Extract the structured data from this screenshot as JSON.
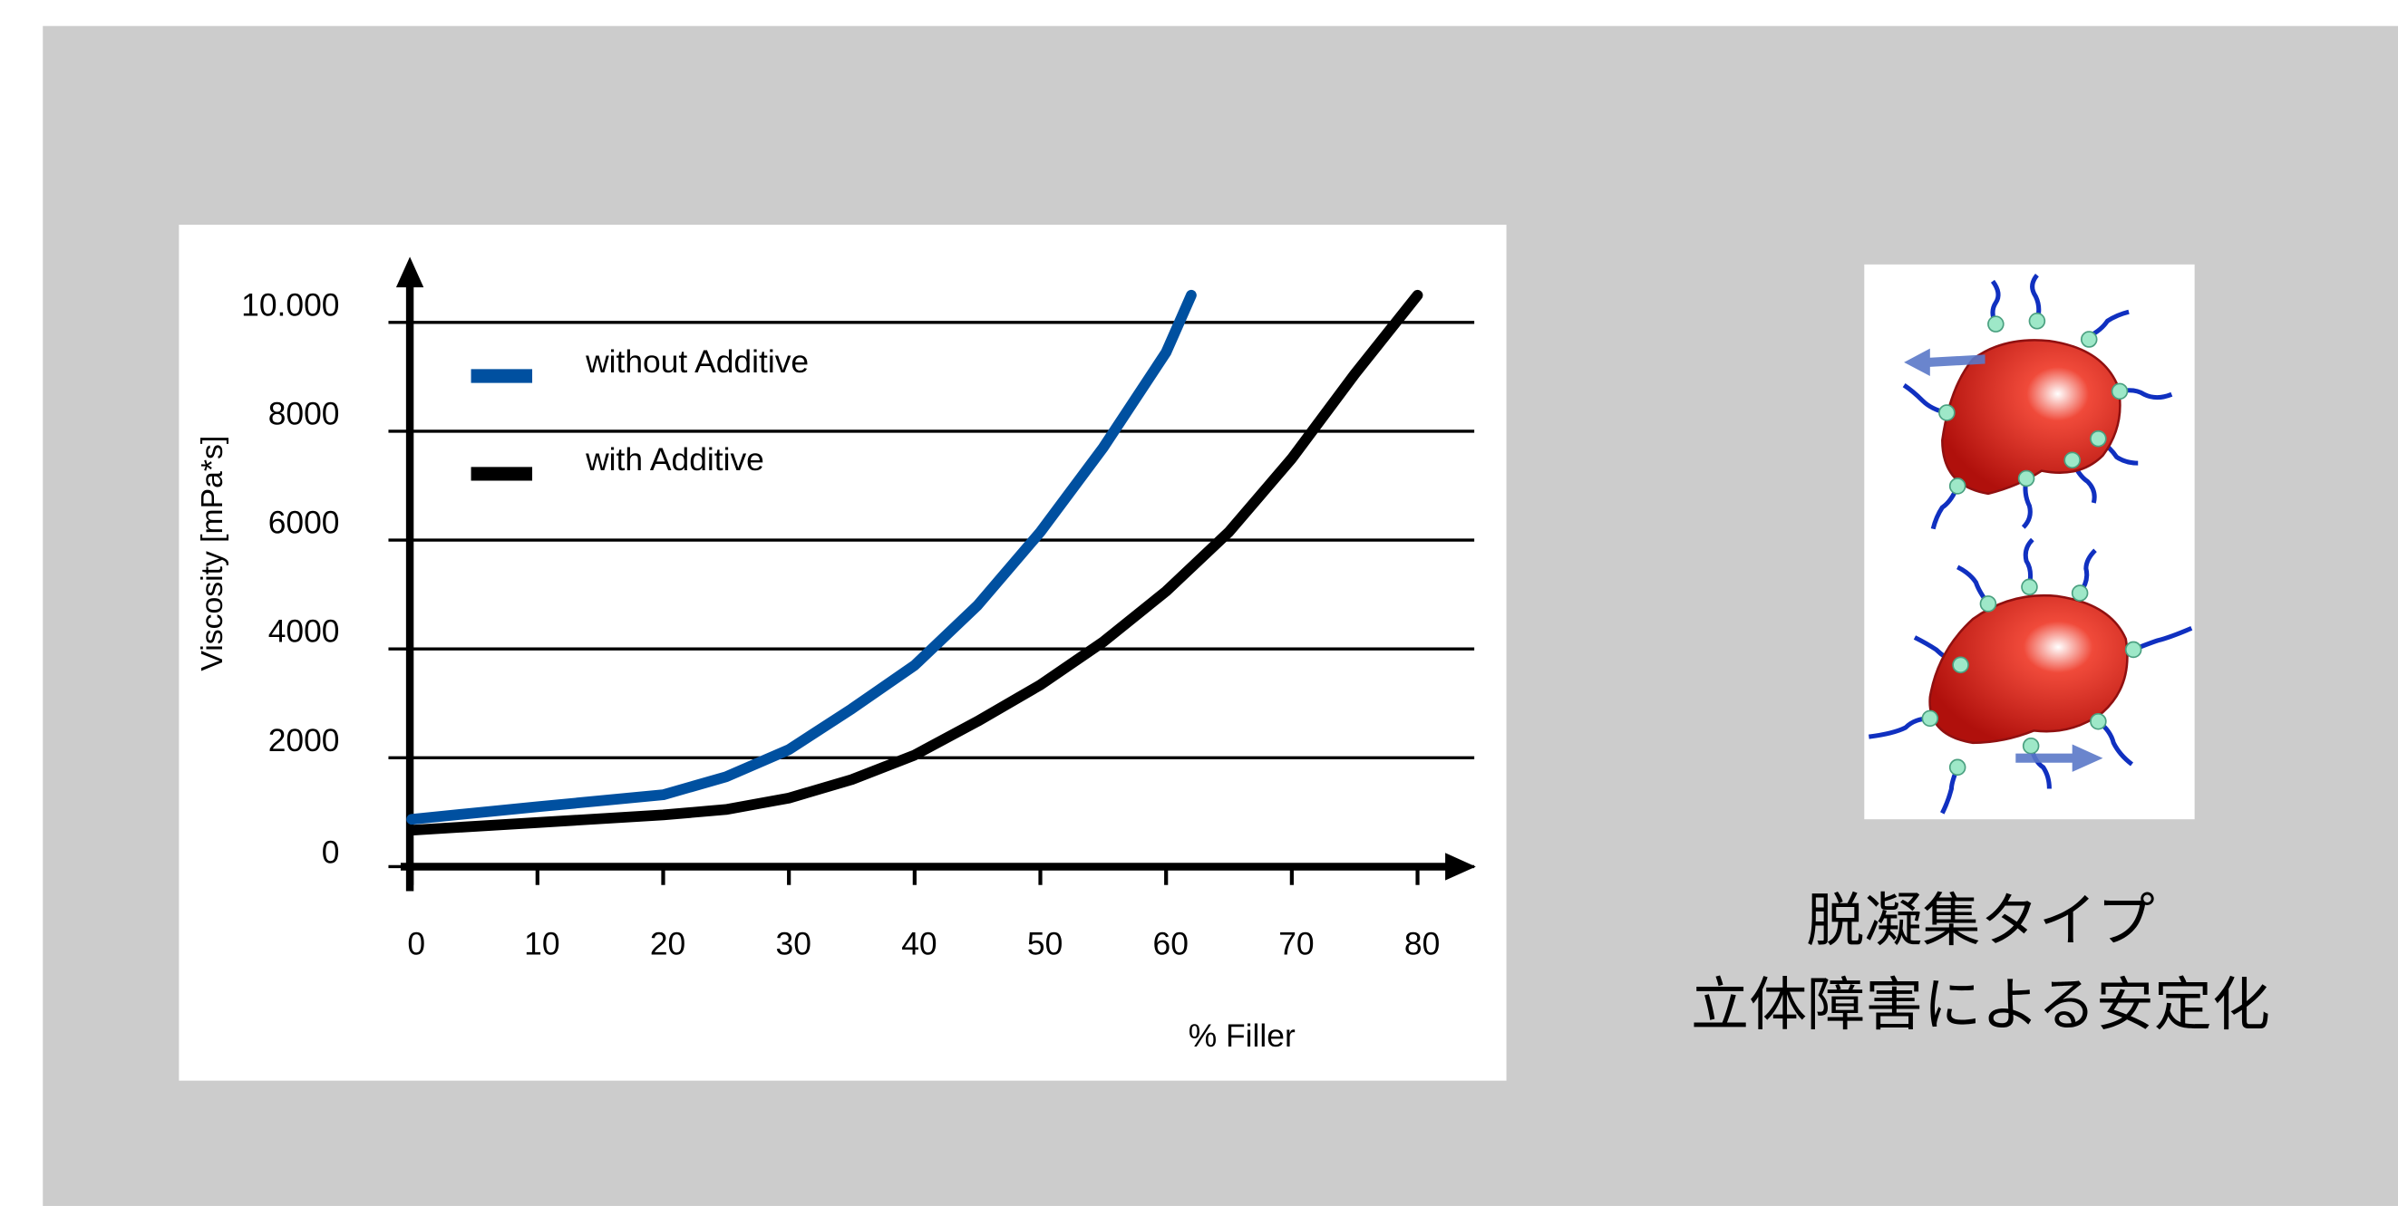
{
  "chart_data": {
    "type": "line",
    "y_label": "Viscosity [mPa*s]",
    "x_label": "% Filler",
    "xlim": [
      -1,
      85
    ],
    "xticks": [
      0,
      10,
      20,
      30,
      40,
      50,
      60,
      70,
      80
    ],
    "ylim": [
      -450,
      11150
    ],
    "yticks": [
      0,
      2000,
      4000,
      6000,
      8000,
      {
        "value": 10000,
        "label": "10.000"
      }
    ],
    "grid": true,
    "series": [
      {
        "name": "without Additive",
        "color": "#0050a0",
        "x": [
          0,
          10,
          20,
          25,
          30,
          35,
          40,
          45,
          50,
          55,
          60,
          62
        ],
        "values": [
          870,
          1100,
          1320,
          1650,
          2150,
          2900,
          3700,
          4800,
          6150,
          7700,
          9450,
          10500
        ]
      },
      {
        "name": "with Additive",
        "color": "#000000",
        "x": [
          0,
          10,
          20,
          25,
          30,
          35,
          40,
          45,
          50,
          55,
          60,
          65,
          70,
          75,
          80
        ],
        "values": [
          670,
          810,
          950,
          1050,
          1260,
          1600,
          2050,
          2670,
          3340,
          4130,
          5060,
          6150,
          7500,
          9050,
          10500
        ]
      }
    ]
  },
  "caption": [
    "脱凝集タイプ",
    "立体障害による安定化"
  ]
}
